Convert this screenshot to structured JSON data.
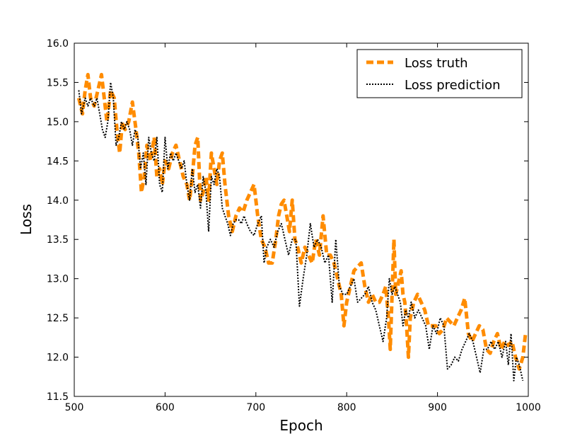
{
  "chart_data": {
    "type": "line",
    "title": "",
    "xlabel": "Epoch",
    "ylabel": "Loss",
    "xlim": [
      500,
      1000
    ],
    "ylim": [
      11.5,
      16.0
    ],
    "xticks": [
      500,
      600,
      700,
      800,
      900,
      1000
    ],
    "yticks": [
      11.5,
      12.0,
      12.5,
      13.0,
      13.5,
      14.0,
      14.5,
      15.0,
      15.5,
      16.0
    ],
    "xtick_labels": [
      "500",
      "600",
      "700",
      "800",
      "900",
      "1000"
    ],
    "ytick_labels": [
      "11.5",
      "12.0",
      "12.5",
      "13.0",
      "13.5",
      "14.0",
      "14.5",
      "15.0",
      "15.5",
      "16.0"
    ],
    "grid": false,
    "legend_position": "top-right",
    "series": [
      {
        "name": "Loss truth",
        "color": "#ff8c00",
        "style": "dashed",
        "points": [
          [
            505,
            15.3
          ],
          [
            509,
            15.1
          ],
          [
            512,
            15.4
          ],
          [
            515,
            15.6
          ],
          [
            518,
            15.3
          ],
          [
            522,
            15.2
          ],
          [
            526,
            15.4
          ],
          [
            530,
            15.6
          ],
          [
            533,
            15.3
          ],
          [
            536,
            15.0
          ],
          [
            540,
            15.4
          ],
          [
            544,
            15.3
          ],
          [
            547,
            14.9
          ],
          [
            550,
            14.6
          ],
          [
            553,
            15.0
          ],
          [
            556,
            14.9
          ],
          [
            560,
            15.0
          ],
          [
            564,
            15.25
          ],
          [
            568,
            14.9
          ],
          [
            571,
            14.6
          ],
          [
            574,
            14.1
          ],
          [
            577,
            14.3
          ],
          [
            580,
            14.7
          ],
          [
            584,
            14.5
          ],
          [
            588,
            14.8
          ],
          [
            591,
            14.3
          ],
          [
            594,
            14.4
          ],
          [
            597,
            14.2
          ],
          [
            600,
            14.5
          ],
          [
            604,
            14.4
          ],
          [
            608,
            14.6
          ],
          [
            612,
            14.7
          ],
          [
            616,
            14.5
          ],
          [
            620,
            14.3
          ],
          [
            624,
            14.2
          ],
          [
            627,
            14.0
          ],
          [
            630,
            14.3
          ],
          [
            633,
            14.7
          ],
          [
            636,
            14.8
          ],
          [
            639,
            14.0
          ],
          [
            642,
            14.1
          ],
          [
            645,
            14.3
          ],
          [
            648,
            14.0
          ],
          [
            651,
            14.6
          ],
          [
            654,
            14.4
          ],
          [
            657,
            14.2
          ],
          [
            660,
            14.5
          ],
          [
            663,
            14.6
          ],
          [
            666,
            14.2
          ],
          [
            670,
            13.8
          ],
          [
            674,
            13.6
          ],
          [
            678,
            13.8
          ],
          [
            682,
            13.9
          ],
          [
            686,
            13.85
          ],
          [
            690,
            14.0
          ],
          [
            694,
            14.1
          ],
          [
            698,
            14.2
          ],
          [
            702,
            13.8
          ],
          [
            706,
            13.5
          ],
          [
            710,
            13.4
          ],
          [
            714,
            13.2
          ],
          [
            718,
            13.2
          ],
          [
            722,
            13.5
          ],
          [
            725,
            13.8
          ],
          [
            728,
            13.95
          ],
          [
            731,
            14.0
          ],
          [
            734,
            13.8
          ],
          [
            737,
            13.6
          ],
          [
            740,
            14.0
          ],
          [
            743,
            13.5
          ],
          [
            746,
            13.4
          ],
          [
            750,
            13.2
          ],
          [
            754,
            13.4
          ],
          [
            758,
            13.3
          ],
          [
            762,
            13.2
          ],
          [
            766,
            13.5
          ],
          [
            770,
            13.3
          ],
          [
            774,
            13.8
          ],
          [
            778,
            13.3
          ],
          [
            782,
            13.3
          ],
          [
            786,
            13.2
          ],
          [
            790,
            13.0
          ],
          [
            794,
            12.8
          ],
          [
            797,
            12.4
          ],
          [
            800,
            12.7
          ],
          [
            804,
            12.9
          ],
          [
            808,
            13.1
          ],
          [
            812,
            13.15
          ],
          [
            816,
            13.2
          ],
          [
            820,
            12.9
          ],
          [
            824,
            12.7
          ],
          [
            828,
            12.8
          ],
          [
            832,
            12.7
          ],
          [
            836,
            12.7
          ],
          [
            840,
            12.8
          ],
          [
            843,
            12.9
          ],
          [
            846,
            12.5
          ],
          [
            848,
            12.1
          ],
          [
            850,
            12.8
          ],
          [
            852,
            13.5
          ],
          [
            854,
            12.8
          ],
          [
            856,
            12.9
          ],
          [
            858,
            13.0
          ],
          [
            860,
            13.1
          ],
          [
            862,
            12.8
          ],
          [
            864,
            12.7
          ],
          [
            866,
            12.4
          ],
          [
            868,
            12.0
          ],
          [
            870,
            12.5
          ],
          [
            874,
            12.7
          ],
          [
            878,
            12.8
          ],
          [
            882,
            12.7
          ],
          [
            886,
            12.6
          ],
          [
            890,
            12.4
          ],
          [
            894,
            12.4
          ],
          [
            898,
            12.4
          ],
          [
            902,
            12.3
          ],
          [
            906,
            12.35
          ],
          [
            910,
            12.5
          ],
          [
            914,
            12.45
          ],
          [
            918,
            12.4
          ],
          [
            922,
            12.5
          ],
          [
            926,
            12.6
          ],
          [
            930,
            12.75
          ],
          [
            934,
            12.3
          ],
          [
            938,
            12.2
          ],
          [
            942,
            12.3
          ],
          [
            946,
            12.4
          ],
          [
            950,
            12.35
          ],
          [
            954,
            12.1
          ],
          [
            958,
            12.05
          ],
          [
            962,
            12.2
          ],
          [
            966,
            12.3
          ],
          [
            970,
            12.1
          ],
          [
            974,
            12.2
          ],
          [
            978,
            12.15
          ],
          [
            982,
            12.2
          ],
          [
            986,
            12.0
          ],
          [
            990,
            11.85
          ],
          [
            994,
            12.0
          ],
          [
            997,
            12.3
          ]
        ]
      },
      {
        "name": "Loss prediction",
        "color": "#000000",
        "style": "dotted",
        "points": [
          [
            505,
            15.4
          ],
          [
            508,
            15.1
          ],
          [
            512,
            15.3
          ],
          [
            515,
            15.2
          ],
          [
            518,
            15.3
          ],
          [
            522,
            15.2
          ],
          [
            525,
            15.3
          ],
          [
            528,
            15.1
          ],
          [
            531,
            14.9
          ],
          [
            534,
            14.8
          ],
          [
            537,
            15.0
          ],
          [
            540,
            15.5
          ],
          [
            543,
            15.3
          ],
          [
            546,
            14.7
          ],
          [
            549,
            14.8
          ],
          [
            552,
            15.0
          ],
          [
            555,
            14.9
          ],
          [
            558,
            15.0
          ],
          [
            561,
            14.9
          ],
          [
            564,
            14.7
          ],
          [
            567,
            14.9
          ],
          [
            570,
            14.8
          ],
          [
            573,
            14.4
          ],
          [
            576,
            14.6
          ],
          [
            579,
            14.2
          ],
          [
            582,
            14.8
          ],
          [
            585,
            14.6
          ],
          [
            588,
            14.5
          ],
          [
            591,
            14.8
          ],
          [
            594,
            14.2
          ],
          [
            597,
            14.1
          ],
          [
            600,
            14.8
          ],
          [
            603,
            14.4
          ],
          [
            606,
            14.6
          ],
          [
            609,
            14.5
          ],
          [
            612,
            14.6
          ],
          [
            615,
            14.5
          ],
          [
            618,
            14.4
          ],
          [
            621,
            14.5
          ],
          [
            624,
            14.2
          ],
          [
            627,
            14.0
          ],
          [
            630,
            14.4
          ],
          [
            633,
            14.1
          ],
          [
            636,
            14.2
          ],
          [
            639,
            13.9
          ],
          [
            642,
            14.3
          ],
          [
            645,
            14.1
          ],
          [
            648,
            13.6
          ],
          [
            651,
            14.3
          ],
          [
            654,
            14.2
          ],
          [
            657,
            14.4
          ],
          [
            660,
            14.3
          ],
          [
            663,
            13.9
          ],
          [
            666,
            13.8
          ],
          [
            669,
            13.7
          ],
          [
            672,
            13.55
          ],
          [
            675,
            13.7
          ],
          [
            678,
            13.75
          ],
          [
            681,
            13.75
          ],
          [
            684,
            13.7
          ],
          [
            687,
            13.8
          ],
          [
            690,
            13.7
          ],
          [
            694,
            13.6
          ],
          [
            698,
            13.55
          ],
          [
            702,
            13.7
          ],
          [
            706,
            13.8
          ],
          [
            709,
            13.2
          ],
          [
            712,
            13.4
          ],
          [
            716,
            13.5
          ],
          [
            720,
            13.4
          ],
          [
            724,
            13.6
          ],
          [
            728,
            13.7
          ],
          [
            732,
            13.5
          ],
          [
            736,
            13.3
          ],
          [
            740,
            13.5
          ],
          [
            744,
            13.5
          ],
          [
            748,
            12.65
          ],
          [
            752,
            13.0
          ],
          [
            756,
            13.3
          ],
          [
            760,
            13.7
          ],
          [
            764,
            13.4
          ],
          [
            768,
            13.5
          ],
          [
            772,
            13.4
          ],
          [
            776,
            13.2
          ],
          [
            780,
            13.3
          ],
          [
            784,
            12.7
          ],
          [
            788,
            13.5
          ],
          [
            792,
            12.9
          ],
          [
            796,
            12.8
          ],
          [
            800,
            12.8
          ],
          [
            804,
            12.9
          ],
          [
            808,
            13.0
          ],
          [
            812,
            12.7
          ],
          [
            816,
            12.75
          ],
          [
            820,
            12.8
          ],
          [
            824,
            12.9
          ],
          [
            828,
            12.7
          ],
          [
            832,
            12.6
          ],
          [
            836,
            12.4
          ],
          [
            840,
            12.2
          ],
          [
            844,
            12.5
          ],
          [
            847,
            13.0
          ],
          [
            850,
            12.8
          ],
          [
            853,
            12.9
          ],
          [
            856,
            12.8
          ],
          [
            859,
            12.7
          ],
          [
            862,
            12.4
          ],
          [
            865,
            12.6
          ],
          [
            868,
            12.5
          ],
          [
            871,
            12.7
          ],
          [
            875,
            12.5
          ],
          [
            879,
            12.6
          ],
          [
            883,
            12.5
          ],
          [
            887,
            12.4
          ],
          [
            891,
            12.1
          ],
          [
            895,
            12.4
          ],
          [
            899,
            12.3
          ],
          [
            903,
            12.5
          ],
          [
            907,
            12.4
          ],
          [
            911,
            11.85
          ],
          [
            915,
            11.9
          ],
          [
            919,
            12.0
          ],
          [
            923,
            11.95
          ],
          [
            927,
            12.1
          ],
          [
            931,
            12.2
          ],
          [
            935,
            12.3
          ],
          [
            939,
            12.2
          ],
          [
            943,
            12.0
          ],
          [
            947,
            11.8
          ],
          [
            951,
            12.1
          ],
          [
            955,
            12.1
          ],
          [
            959,
            12.2
          ],
          [
            963,
            12.1
          ],
          [
            967,
            12.2
          ],
          [
            971,
            12.0
          ],
          [
            975,
            12.2
          ],
          [
            978,
            11.9
          ],
          [
            981,
            12.3
          ],
          [
            984,
            11.7
          ],
          [
            987,
            12.0
          ],
          [
            990,
            11.9
          ],
          [
            994,
            11.7
          ]
        ]
      }
    ]
  }
}
